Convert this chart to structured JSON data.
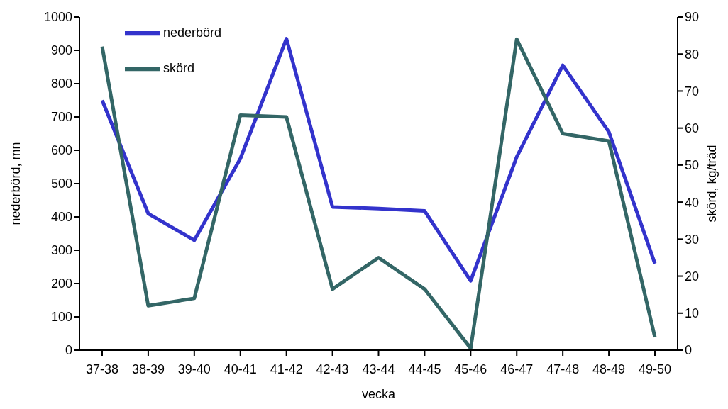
{
  "chart_data": {
    "type": "line",
    "xlabel": "vecka",
    "ylabel": "nederbörd, mn",
    "y2label": "skörd, kg/träd",
    "categories": [
      "37-38",
      "38-39",
      "39-40",
      "40-41",
      "41-42",
      "42-43",
      "43-44",
      "44-45",
      "45-46",
      "46-47",
      "47-48",
      "48-49",
      "49-50"
    ],
    "series": [
      {
        "name": "nederbörd",
        "color": "#3333cc",
        "values": [
          750,
          410,
          330,
          575,
          935,
          430,
          425,
          418,
          208,
          580,
          855,
          655,
          260
        ]
      },
      {
        "name": "skörd",
        "color": "#336666",
        "axis": "y2",
        "values": [
          82,
          12,
          14,
          63.5,
          63,
          16.5,
          25,
          16.5,
          0.5,
          84,
          58.5,
          56.5,
          3.5
        ]
      }
    ],
    "ylim": [
      0,
      1000
    ],
    "yticks": [
      0,
      100,
      200,
      300,
      400,
      500,
      600,
      700,
      800,
      900,
      1000
    ],
    "y2lim": [
      0,
      90
    ],
    "y2ticks": [
      0,
      10,
      20,
      30,
      40,
      50,
      60,
      70,
      80,
      90
    ],
    "grid": false,
    "legend": "top left",
    "marker": "none",
    "line_style": "solid"
  }
}
